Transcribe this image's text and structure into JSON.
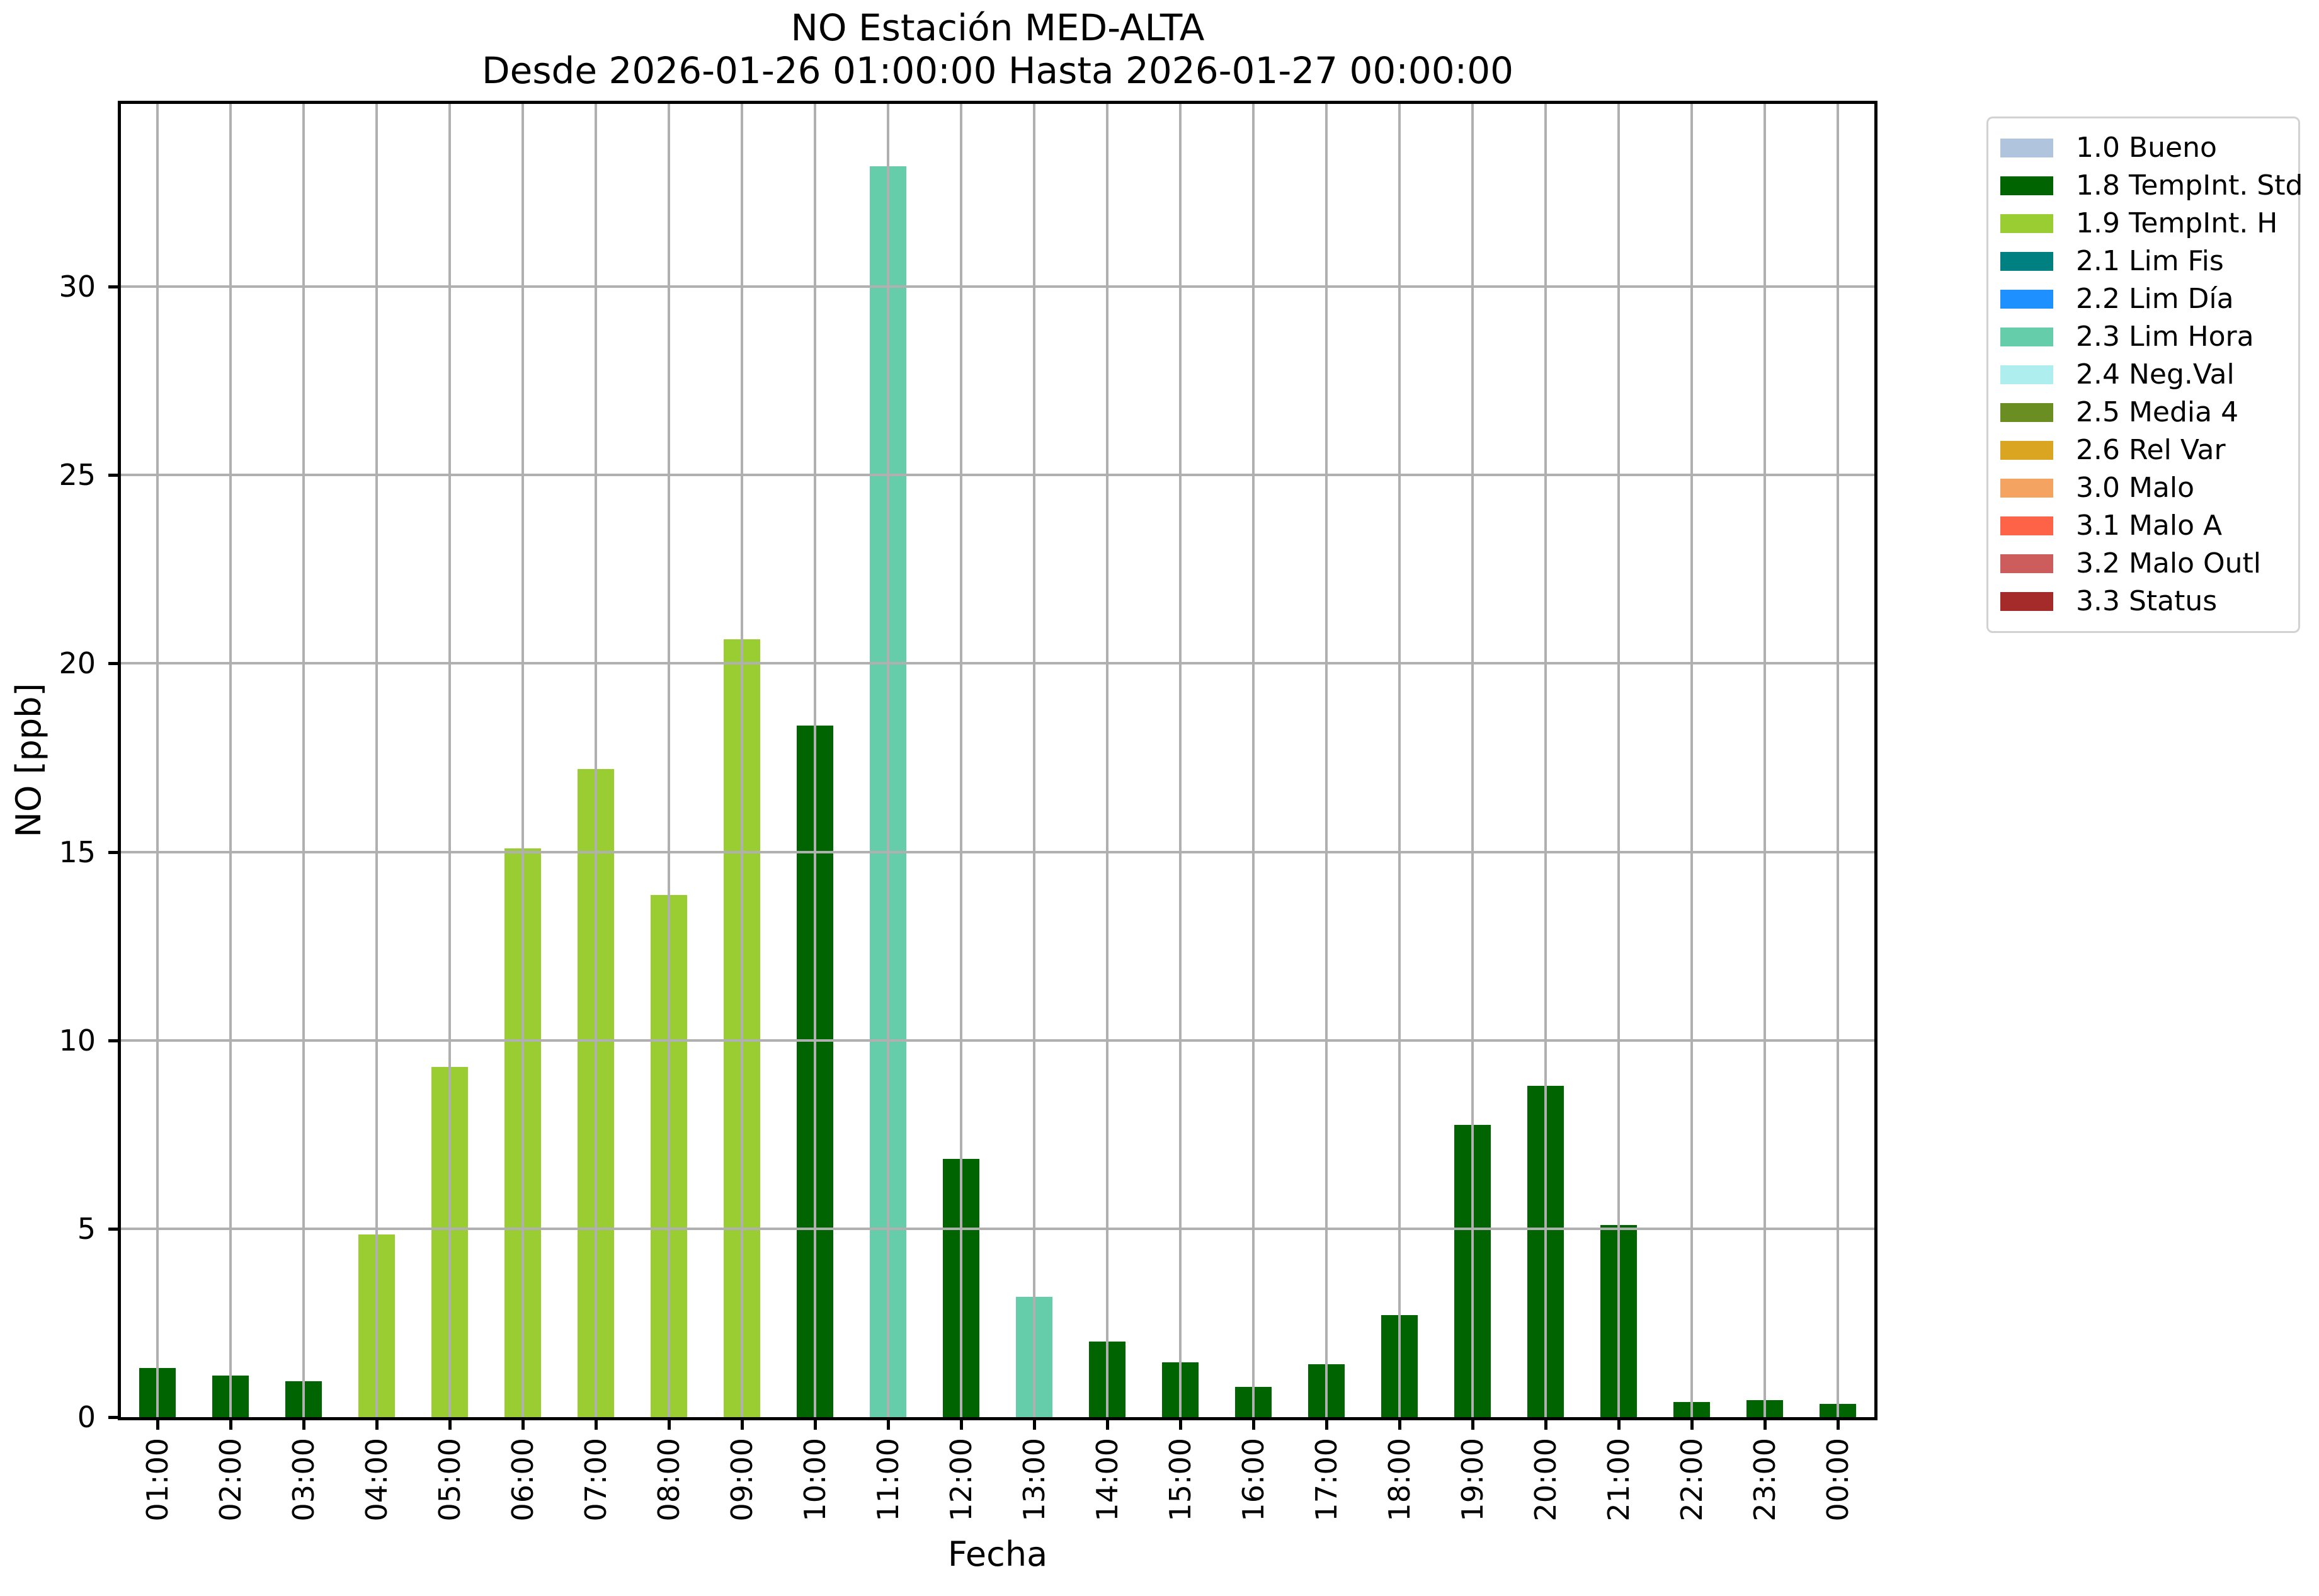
{
  "chart_data": {
    "type": "bar",
    "title": "NO Estación MED-ALTA",
    "subtitle": "Desde 2026-01-26 01:00:00 Hasta 2026-01-27 00:00:00",
    "xlabel": "Fecha",
    "ylabel": "NO [ppb]",
    "ylim": [
      0,
      34.85
    ],
    "yticks": [
      0,
      5,
      10,
      15,
      20,
      25,
      30
    ],
    "grid": true,
    "grid_color": "#b0b0b0",
    "legend_position": "outside upper right",
    "categories": [
      "01:00",
      "02:00",
      "03:00",
      "04:00",
      "05:00",
      "06:00",
      "07:00",
      "08:00",
      "09:00",
      "10:00",
      "11:00",
      "12:00",
      "13:00",
      "14:00",
      "15:00",
      "16:00",
      "17:00",
      "18:00",
      "19:00",
      "20:00",
      "21:00",
      "22:00",
      "23:00",
      "00:00"
    ],
    "values": [
      1.3,
      1.1,
      0.95,
      4.85,
      9.3,
      15.1,
      17.2,
      13.85,
      20.65,
      18.35,
      33.2,
      6.85,
      3.2,
      2.0,
      1.45,
      0.8,
      1.4,
      2.7,
      7.75,
      8.8,
      5.1,
      0.4,
      0.45,
      0.35
    ],
    "bar_flags": [
      "1.8",
      "1.8",
      "1.8",
      "1.9",
      "1.9",
      "1.9",
      "1.9",
      "1.9",
      "1.9",
      "1.8",
      "2.3",
      "1.8",
      "2.3",
      "1.8",
      "1.8",
      "1.8",
      "1.8",
      "1.8",
      "1.8",
      "1.8",
      "1.8",
      "1.8",
      "1.8",
      "1.8"
    ],
    "flag_colors": {
      "1.0": "#B0C4DE",
      "1.8": "#006400",
      "1.9": "#9ACD32",
      "2.1": "#008080",
      "2.2": "#1E90FF",
      "2.3": "#66CDAA",
      "2.4": "#AFEEEE",
      "2.5": "#6B8E23",
      "2.6": "#DAA520",
      "3.0": "#F4A460",
      "3.1": "#FF6347",
      "3.2": "#CD5C5C",
      "3.3": "#A52A2A"
    },
    "legend": [
      {
        "label": "1.0 Bueno",
        "color": "#B0C4DE"
      },
      {
        "label": "1.8 TempInt. Std",
        "color": "#006400"
      },
      {
        "label": "1.9 TempInt. H",
        "color": "#9ACD32"
      },
      {
        "label": "2.1 Lim Fis",
        "color": "#008080"
      },
      {
        "label": "2.2 Lim Día",
        "color": "#1E90FF"
      },
      {
        "label": "2.3 Lim Hora",
        "color": "#66CDAA"
      },
      {
        "label": "2.4 Neg.Val",
        "color": "#AFEEEE"
      },
      {
        "label": "2.5 Media 4",
        "color": "#6B8E23"
      },
      {
        "label": "2.6 Rel Var",
        "color": "#DAA520"
      },
      {
        "label": "3.0 Malo",
        "color": "#F4A460"
      },
      {
        "label": "3.1 Malo A",
        "color": "#FF6347"
      },
      {
        "label": "3.2 Malo Outl",
        "color": "#CD5C5C"
      },
      {
        "label": "3.3 Status",
        "color": "#A52A2A"
      }
    ]
  }
}
